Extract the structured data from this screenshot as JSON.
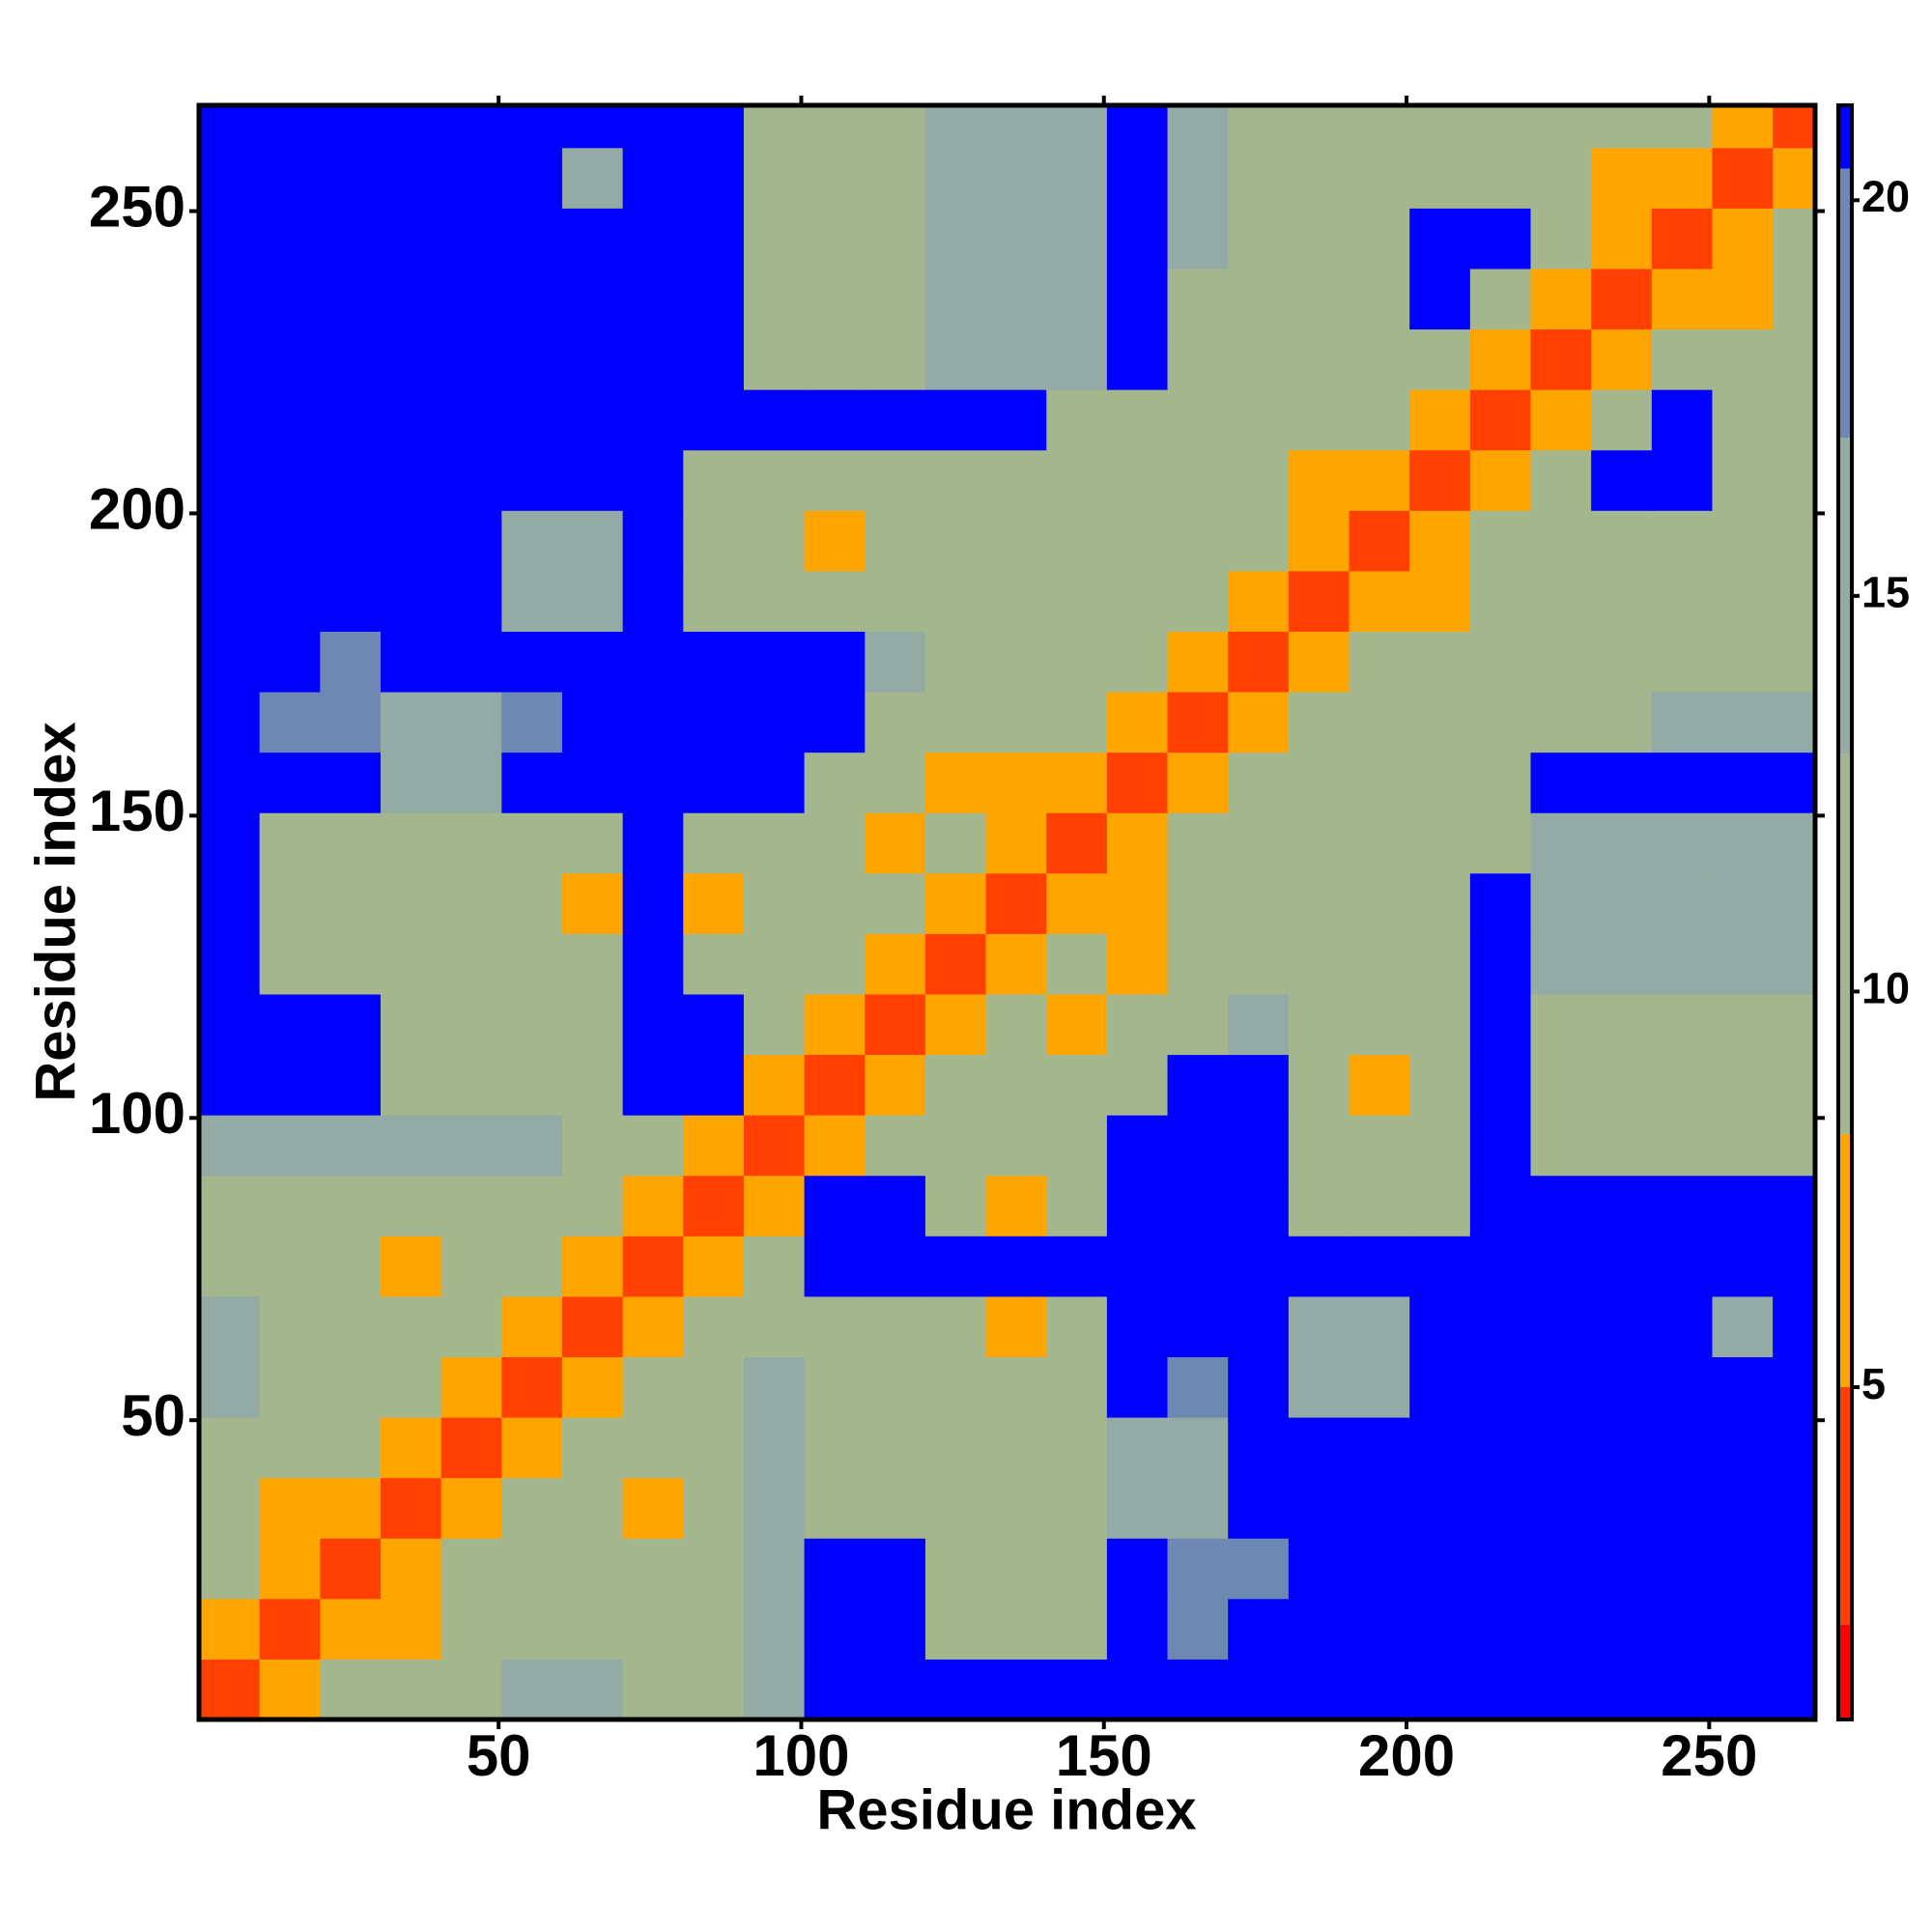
{
  "chart_data": {
    "type": "heatmap",
    "x_label": "Residue index",
    "y_label": "Residue index",
    "xlim": [
      0.5,
      267.5
    ],
    "ylim": [
      0.5,
      267.5
    ],
    "xticks": [
      50,
      100,
      150,
      200,
      250
    ],
    "yticks": [
      50,
      100,
      150,
      200,
      250
    ],
    "bins": [
      0.5,
      10.5,
      20.5,
      30.5,
      40.5,
      50.5,
      60.5,
      70.5,
      80.5,
      90.5,
      100.5,
      110.5,
      120.5,
      130.5,
      140.5,
      150.5,
      160.5,
      170.5,
      180.5,
      190.5,
      200.5,
      210.5,
      220.5,
      230.5,
      240.5,
      250.5,
      260.5,
      267.5
    ],
    "zlim": [
      0.8,
      21.2
    ],
    "zticks": [
      5,
      10,
      15,
      20
    ],
    "colorscale": [
      [
        2,
        "#ff0000"
      ],
      [
        5,
        "#ff4000"
      ],
      [
        8.2,
        "#ffa500"
      ],
      [
        13,
        "#a4b68e"
      ],
      [
        17,
        "#94aaa4"
      ],
      [
        20.4,
        "#6e88b4"
      ],
      [
        21.2,
        "#0000ff"
      ]
    ],
    "z": [
      [
        3,
        8,
        12,
        12,
        12,
        15,
        15,
        12,
        12,
        14,
        21,
        21,
        21,
        21,
        21,
        21,
        21,
        21,
        21,
        21,
        21,
        21,
        21,
        21,
        21,
        21,
        21
      ],
      [
        8,
        3,
        8,
        7,
        12,
        12,
        12,
        12,
        12,
        14,
        21,
        21,
        13,
        13,
        13,
        21,
        18,
        21,
        21,
        21,
        21,
        21,
        21,
        21,
        21,
        21,
        21
      ],
      [
        12,
        8,
        3,
        8,
        12,
        12,
        12,
        12,
        12,
        14,
        21,
        21,
        13,
        13,
        13,
        21,
        18,
        18,
        21,
        21,
        21,
        21,
        21,
        21,
        21,
        21,
        21
      ],
      [
        12,
        7,
        8,
        3,
        8,
        12,
        12,
        7,
        12,
        14,
        11,
        11,
        11,
        11,
        11,
        15,
        15,
        21,
        21,
        21,
        21,
        21,
        21,
        21,
        21,
        21,
        21
      ],
      [
        12,
        12,
        12,
        8,
        3,
        8,
        12,
        12,
        12,
        14,
        11,
        11,
        11,
        11,
        11,
        15,
        15,
        21,
        21,
        21,
        21,
        21,
        21,
        21,
        21,
        21,
        21
      ],
      [
        15,
        12,
        12,
        12,
        8,
        3,
        8,
        12,
        12,
        14,
        11,
        11,
        11,
        11,
        11,
        21,
        18,
        21,
        17,
        16,
        21,
        21,
        21,
        21,
        21,
        21,
        21
      ],
      [
        15,
        12,
        12,
        12,
        12,
        8,
        3,
        8,
        12,
        12,
        11,
        11,
        11,
        7,
        11,
        21,
        21,
        21,
        17,
        16,
        21,
        21,
        21,
        21,
        21,
        17,
        21
      ],
      [
        12,
        12,
        12,
        7,
        12,
        12,
        8,
        3,
        8,
        12,
        21,
        21,
        21,
        21,
        21,
        21,
        21,
        21,
        21,
        21,
        21,
        21,
        21,
        21,
        21,
        21,
        21
      ],
      [
        12,
        12,
        12,
        12,
        12,
        12,
        12,
        8,
        3,
        8,
        21,
        21,
        12,
        8,
        12,
        21,
        21,
        21,
        11,
        11,
        11,
        21,
        21,
        21,
        21,
        21,
        21
      ],
      [
        14,
        14,
        14,
        14,
        14,
        14,
        12,
        12,
        8,
        3,
        8,
        12,
        12,
        12,
        12,
        21,
        21,
        21,
        11,
        11,
        11,
        21,
        12,
        12,
        12,
        12,
        12
      ],
      [
        21,
        21,
        21,
        11,
        11,
        11,
        11,
        21,
        21,
        8,
        3,
        8,
        12,
        12,
        12,
        12,
        21,
        21,
        11,
        8,
        11,
        21,
        12,
        12,
        12,
        12,
        12
      ],
      [
        21,
        21,
        21,
        11,
        11,
        11,
        11,
        21,
        21,
        12,
        8,
        3,
        8,
        12,
        8,
        12,
        12,
        16,
        11,
        11,
        11,
        21,
        12,
        12,
        12,
        12,
        12
      ],
      [
        21,
        13,
        13,
        11,
        11,
        11,
        11,
        21,
        12,
        12,
        12,
        8,
        3,
        8,
        12,
        7,
        12,
        12,
        11,
        11,
        11,
        21,
        16,
        16,
        16,
        16,
        16
      ],
      [
        21,
        13,
        13,
        11,
        11,
        11,
        7,
        21,
        8,
        12,
        12,
        12,
        8,
        3,
        8,
        8,
        12,
        12,
        11,
        11,
        11,
        21,
        16,
        16,
        16,
        16,
        16
      ],
      [
        21,
        13,
        13,
        11,
        11,
        11,
        11,
        21,
        12,
        12,
        12,
        8,
        12,
        8,
        3,
        8,
        12,
        12,
        12,
        12,
        12,
        12,
        16,
        16,
        16,
        16,
        16
      ],
      [
        21,
        21,
        21,
        15,
        15,
        21,
        21,
        21,
        21,
        21,
        12,
        12,
        7,
        8,
        8,
        3,
        8,
        12,
        12,
        12,
        12,
        12,
        21,
        21,
        21,
        21,
        21
      ],
      [
        21,
        18,
        18,
        15,
        15,
        18,
        21,
        21,
        21,
        21,
        21,
        12,
        12,
        12,
        12,
        8,
        3,
        8,
        12,
        12,
        12,
        12,
        12,
        12,
        16,
        16,
        16
      ],
      [
        21,
        21,
        18,
        21,
        21,
        21,
        21,
        21,
        21,
        21,
        21,
        16,
        12,
        12,
        12,
        12,
        8,
        3,
        8,
        12,
        12,
        12,
        12,
        12,
        12,
        12,
        12
      ],
      [
        21,
        21,
        21,
        21,
        21,
        17,
        17,
        21,
        11,
        11,
        11,
        11,
        11,
        11,
        12,
        12,
        12,
        8,
        3,
        8,
        8,
        12,
        12,
        12,
        12,
        12,
        12
      ],
      [
        21,
        21,
        21,
        21,
        21,
        16,
        16,
        21,
        11,
        11,
        8,
        11,
        11,
        11,
        12,
        12,
        12,
        12,
        8,
        3,
        8,
        12,
        12,
        12,
        12,
        12,
        12
      ],
      [
        21,
        21,
        21,
        21,
        21,
        21,
        21,
        21,
        11,
        11,
        11,
        11,
        11,
        11,
        12,
        12,
        12,
        12,
        8,
        8,
        3,
        8,
        12,
        21,
        21,
        12,
        12
      ],
      [
        21,
        21,
        21,
        21,
        21,
        21,
        21,
        21,
        21,
        21,
        21,
        21,
        21,
        21,
        12,
        12,
        12,
        12,
        12,
        12,
        8,
        3,
        8,
        12,
        21,
        12,
        12
      ],
      [
        21,
        21,
        21,
        21,
        21,
        21,
        21,
        21,
        21,
        12,
        12,
        12,
        16,
        16,
        16,
        21,
        12,
        12,
        12,
        12,
        12,
        8,
        3,
        8,
        12,
        12,
        12
      ],
      [
        21,
        21,
        21,
        21,
        21,
        21,
        21,
        21,
        21,
        12,
        12,
        12,
        16,
        16,
        16,
        21,
        12,
        12,
        12,
        12,
        21,
        12,
        8,
        3,
        8,
        8,
        12
      ],
      [
        21,
        21,
        21,
        21,
        21,
        21,
        21,
        21,
        21,
        12,
        12,
        12,
        16,
        16,
        16,
        21,
        16,
        12,
        12,
        12,
        21,
        21,
        12,
        8,
        3,
        8,
        12
      ],
      [
        21,
        21,
        21,
        21,
        21,
        21,
        17,
        21,
        21,
        12,
        12,
        12,
        16,
        16,
        16,
        21,
        16,
        12,
        12,
        12,
        12,
        12,
        12,
        8,
        8,
        3,
        8
      ],
      [
        21,
        21,
        21,
        21,
        21,
        21,
        21,
        21,
        21,
        12,
        12,
        12,
        16,
        16,
        16,
        21,
        16,
        12,
        12,
        12,
        12,
        12,
        12,
        12,
        12,
        8,
        3
      ]
    ]
  }
}
